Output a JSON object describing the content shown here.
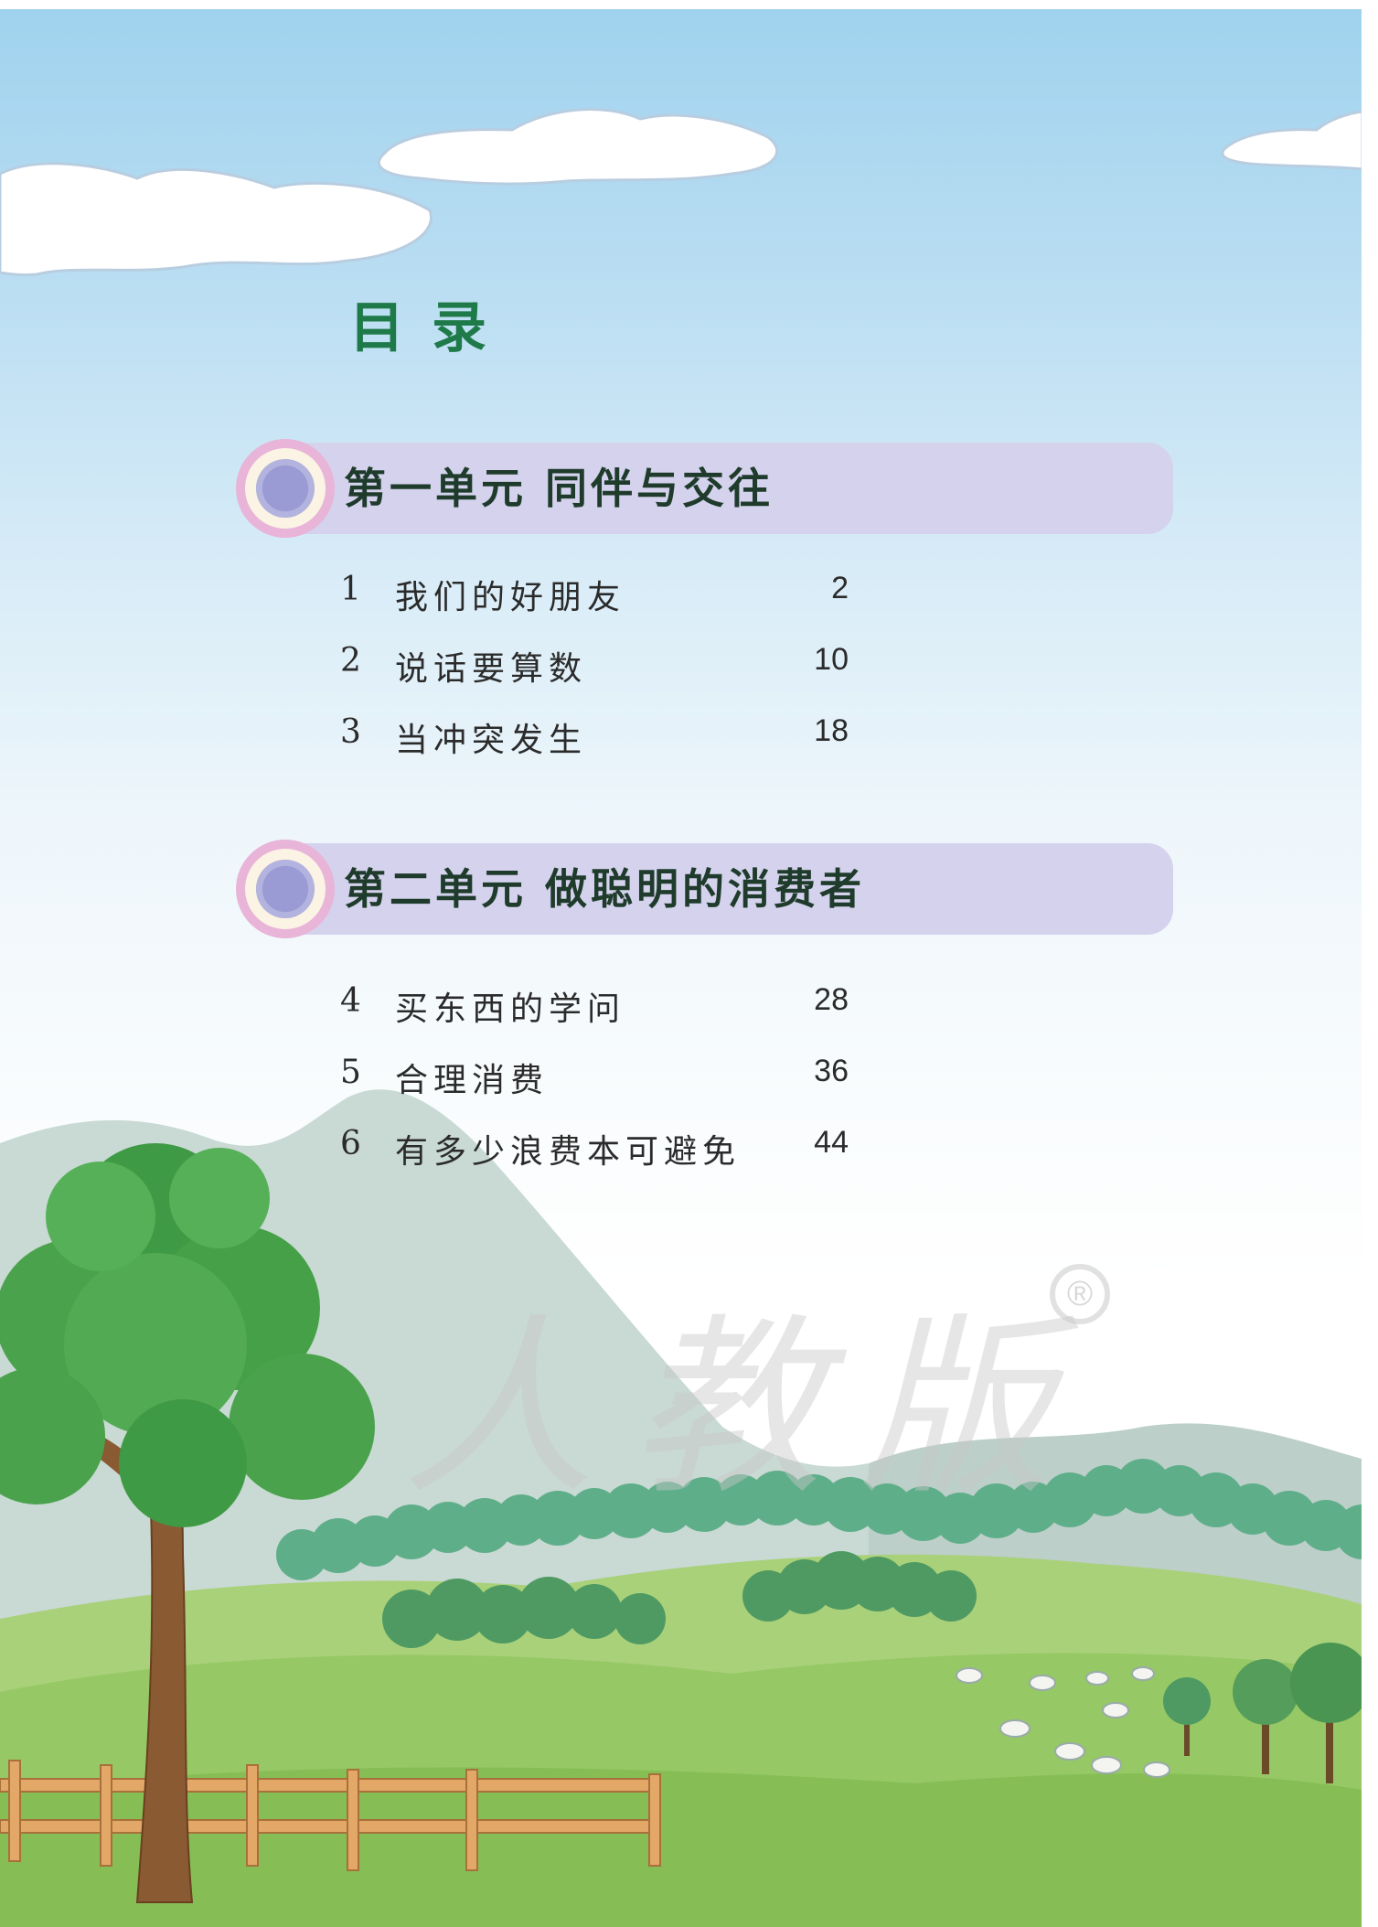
{
  "title": "目录",
  "units": [
    {
      "title": "第一单元  同伴与交往",
      "lessons": [
        {
          "num": "1",
          "name": "我们的好朋友",
          "page": "2"
        },
        {
          "num": "2",
          "name": "说话要算数",
          "page": "10"
        },
        {
          "num": "3",
          "name": "当冲突发生",
          "page": "18"
        }
      ]
    },
    {
      "title": "第二单元  做聪明的消费者",
      "lessons": [
        {
          "num": "4",
          "name": "买东西的学问",
          "page": "28"
        },
        {
          "num": "5",
          "name": "合理消费",
          "page": "36"
        },
        {
          "num": "6",
          "name": "有多少浪费本可避免",
          "page": "44"
        }
      ]
    }
  ],
  "watermark": "人教版",
  "registered_mark": "®",
  "colors": {
    "title": "#1f7a4a",
    "unit_bar": "#d4d2ec",
    "badge_ring": "#e8b4d8",
    "sky": "#9fd2ee",
    "grass": "#8fc45a"
  }
}
